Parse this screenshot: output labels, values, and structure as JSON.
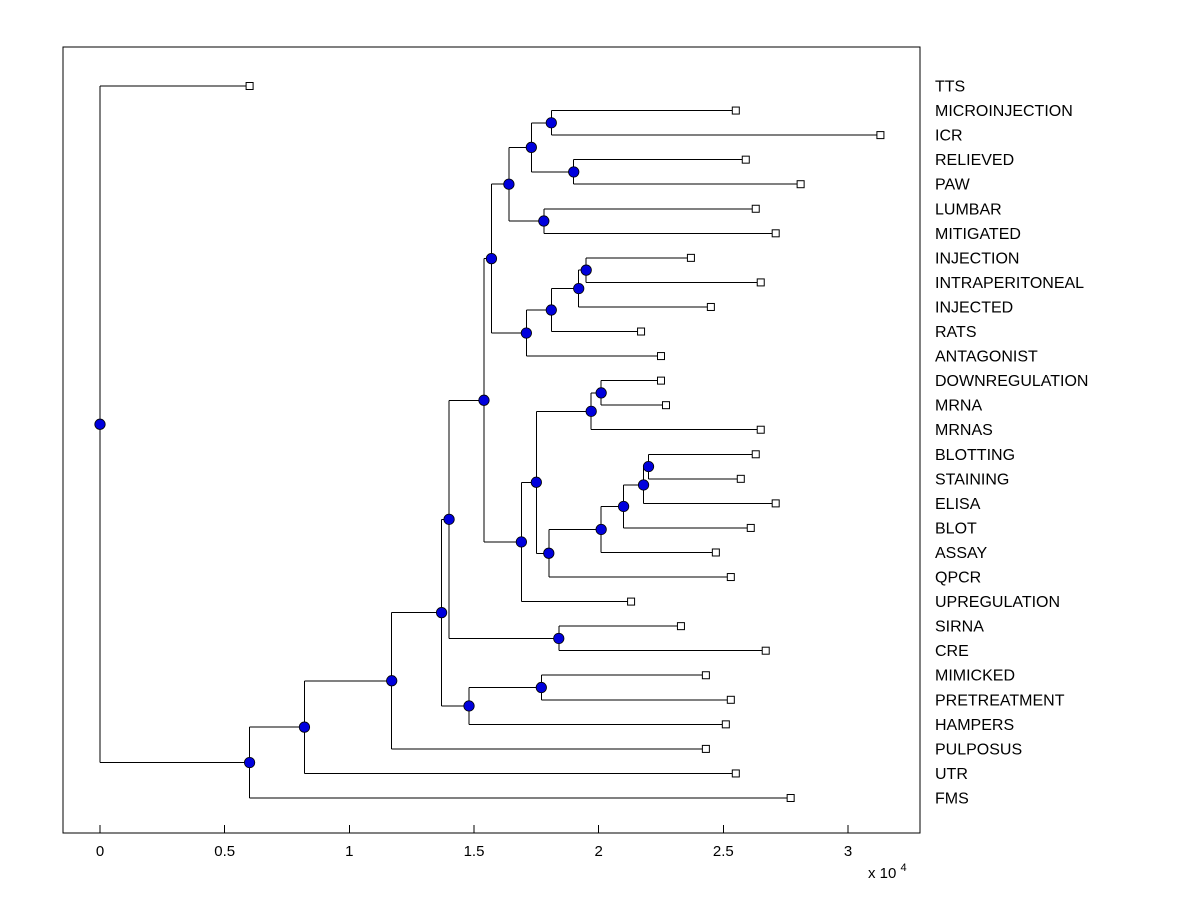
{
  "figure": {
    "background": "#FFFFFF"
  },
  "chart_data": {
    "type": "dendrogram",
    "orientation": "horizontal",
    "title": "",
    "xlabel": "",
    "ylabel": "",
    "x_axis": {
      "ticks": [
        0,
        0.5,
        1,
        1.5,
        2,
        2.5,
        3
      ],
      "tick_labels": [
        "0",
        "0.5",
        "1",
        "1.5",
        "2",
        "2.5",
        "3"
      ],
      "exponent_text": "x 10",
      "exponent_power": "4",
      "unit_scale": 10000,
      "range": [
        -0.148,
        3.289
      ]
    },
    "grid": false,
    "legend": false,
    "leaf_order": [
      "TTS",
      "MICROINJECTION",
      "ICR",
      "RELIEVED",
      "PAW",
      "LUMBAR",
      "MITIGATED",
      "INJECTION",
      "INTRAPERITONEAL",
      "INJECTED",
      "RATS",
      "ANTAGONIST",
      "DOWNREGULATION",
      "MRNA",
      "MRNAS",
      "BLOTTING",
      "STAINING",
      "ELISA",
      "BLOT",
      "ASSAY",
      "QPCR",
      "UPREGULATION",
      "SIRNA",
      "CRE",
      "MIMICKED",
      "PRETREATMENT",
      "HAMPERS",
      "PULPOSUS",
      "UTR",
      "FMS"
    ],
    "tree": {
      "x": 0.0,
      "children": [
        {
          "label": "TTS",
          "x": 0.6
        },
        {
          "x": 0.6,
          "children": [
            {
              "x": 0.82,
              "children": [
                {
                  "x": 1.17,
                  "children": [
                    {
                      "x": 1.37,
                      "children": [
                        {
                          "x": 1.4,
                          "children": [
                            {
                              "x": 1.54,
                              "children": [
                                {
                                  "x": 1.57,
                                  "children": [
                                    {
                                      "x": 1.64,
                                      "children": [
                                        {
                                          "x": 1.73,
                                          "children": [
                                            {
                                              "x": 1.81,
                                              "children": [
                                                {
                                                  "label": "MICROINJECTION",
                                                  "x": 2.55
                                                },
                                                {
                                                  "label": "ICR",
                                                  "x": 3.13
                                                }
                                              ]
                                            },
                                            {
                                              "x": 1.9,
                                              "children": [
                                                {
                                                  "label": "RELIEVED",
                                                  "x": 2.59
                                                },
                                                {
                                                  "label": "PAW",
                                                  "x": 2.81
                                                }
                                              ]
                                            }
                                          ]
                                        },
                                        {
                                          "x": 1.78,
                                          "children": [
                                            {
                                              "label": "LUMBAR",
                                              "x": 2.63
                                            },
                                            {
                                              "label": "MITIGATED",
                                              "x": 2.71
                                            }
                                          ]
                                        }
                                      ]
                                    },
                                    {
                                      "x": 1.71,
                                      "children": [
                                        {
                                          "x": 1.81,
                                          "children": [
                                            {
                                              "x": 1.92,
                                              "children": [
                                                {
                                                  "x": 1.95,
                                                  "children": [
                                                    {
                                                      "label": "INJECTION",
                                                      "x": 2.37
                                                    },
                                                    {
                                                      "label": "INTRAPERITONEAL",
                                                      "x": 2.65
                                                    }
                                                  ]
                                                },
                                                {
                                                  "label": "INJECTED",
                                                  "x": 2.45
                                                }
                                              ]
                                            },
                                            {
                                              "label": "RATS",
                                              "x": 2.17
                                            }
                                          ]
                                        },
                                        {
                                          "label": "ANTAGONIST",
                                          "x": 2.25
                                        }
                                      ]
                                    }
                                  ]
                                },
                                {
                                  "x": 1.69,
                                  "children": [
                                    {
                                      "x": 1.75,
                                      "children": [
                                        {
                                          "x": 1.97,
                                          "children": [
                                            {
                                              "x": 2.01,
                                              "children": [
                                                {
                                                  "label": "DOWNREGULATION",
                                                  "x": 2.25
                                                },
                                                {
                                                  "label": "MRNA",
                                                  "x": 2.27
                                                }
                                              ]
                                            },
                                            {
                                              "label": "MRNAS",
                                              "x": 2.65
                                            }
                                          ]
                                        },
                                        {
                                          "x": 1.8,
                                          "children": [
                                            {
                                              "x": 2.01,
                                              "children": [
                                                {
                                                  "x": 2.1,
                                                  "children": [
                                                    {
                                                      "x": 2.18,
                                                      "children": [
                                                        {
                                                          "x": 2.2,
                                                          "children": [
                                                            {
                                                              "label": "BLOTTING",
                                                              "x": 2.63
                                                            },
                                                            {
                                                              "label": "STAINING",
                                                              "x": 2.57
                                                            }
                                                          ]
                                                        },
                                                        {
                                                          "label": "ELISA",
                                                          "x": 2.71
                                                        }
                                                      ]
                                                    },
                                                    {
                                                      "label": "BLOT",
                                                      "x": 2.61
                                                    }
                                                  ]
                                                },
                                                {
                                                  "label": "ASSAY",
                                                  "x": 2.47
                                                }
                                              ]
                                            },
                                            {
                                              "label": "QPCR",
                                              "x": 2.53
                                            }
                                          ]
                                        }
                                      ]
                                    },
                                    {
                                      "label": "UPREGULATION",
                                      "x": 2.13
                                    }
                                  ]
                                }
                              ]
                            },
                            {
                              "x": 1.84,
                              "children": [
                                {
                                  "label": "SIRNA",
                                  "x": 2.33
                                },
                                {
                                  "label": "CRE",
                                  "x": 2.67
                                }
                              ]
                            }
                          ]
                        },
                        {
                          "x": 1.48,
                          "children": [
                            {
                              "x": 1.77,
                              "children": [
                                {
                                  "label": "MIMICKED",
                                  "x": 2.43
                                },
                                {
                                  "label": "PRETREATMENT",
                                  "x": 2.53
                                }
                              ]
                            },
                            {
                              "label": "HAMPERS",
                              "x": 2.51
                            }
                          ]
                        }
                      ]
                    },
                    {
                      "label": "PULPOSUS",
                      "x": 2.43
                    }
                  ]
                },
                {
                  "label": "UTR",
                  "x": 2.55
                }
              ]
            },
            {
              "label": "FMS",
              "x": 2.77
            }
          ]
        }
      ]
    },
    "style": {
      "line_color": "#000000",
      "node_fill": "#0000DD",
      "node_stroke": "#000000",
      "leaf_fill": "#FFFFFF",
      "leaf_stroke": "#000000",
      "label_color": "#000000",
      "axis_color": "#000000"
    }
  }
}
